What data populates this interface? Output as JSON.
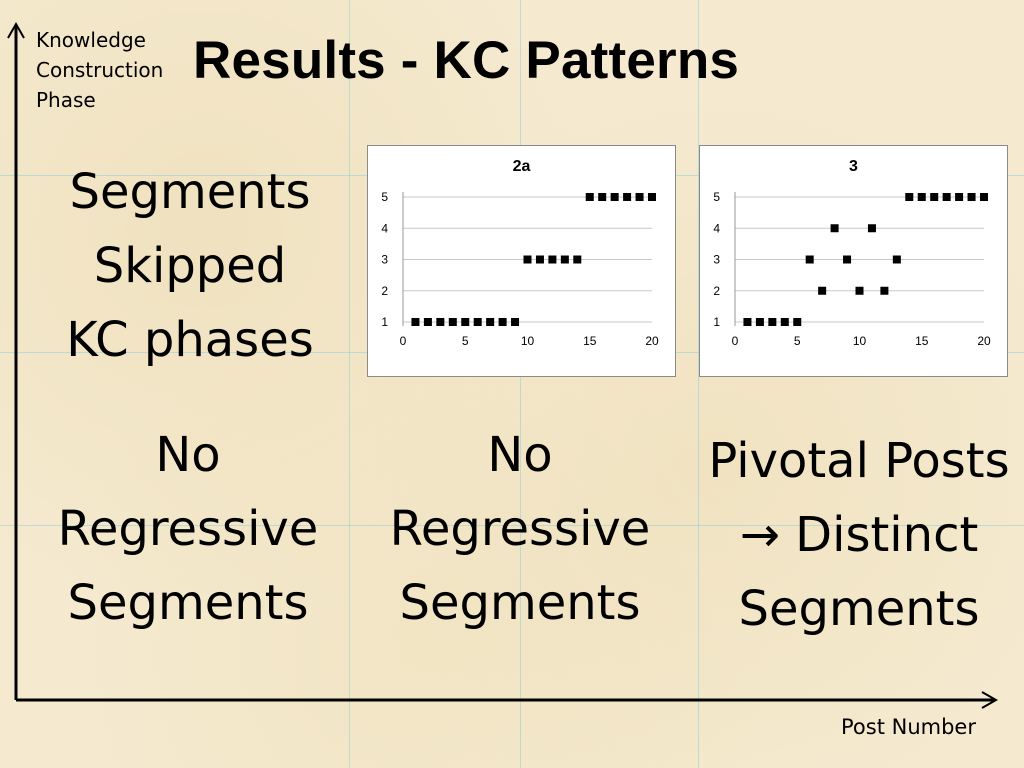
{
  "slide_title": "Results - KC Patterns",
  "y_axis_label": [
    "Knowledge",
    "Construction",
    "Phase"
  ],
  "x_axis_label": "Post Number",
  "row1_label": [
    "Segments",
    "Skipped",
    "KC phases"
  ],
  "row2": {
    "col1": [
      "No",
      "Regressive",
      "Segments"
    ],
    "col2": [
      "No",
      "Regressive",
      "Segments"
    ],
    "col3": [
      "Pivotal Posts",
      "→ Distinct",
      "Segments"
    ]
  },
  "colors": {
    "marker": "#000000",
    "grid": "#c8c8c8",
    "background": "#f5ead0"
  },
  "chart_data": [
    {
      "type": "scatter",
      "title": "2a",
      "xlim": [
        0,
        20
      ],
      "ylim": [
        1,
        5
      ],
      "xticks": [
        0,
        5,
        10,
        15,
        20
      ],
      "yticks": [
        1,
        2,
        3,
        4,
        5
      ],
      "grid": true,
      "points": [
        [
          1,
          1
        ],
        [
          2,
          1
        ],
        [
          3,
          1
        ],
        [
          4,
          1
        ],
        [
          5,
          1
        ],
        [
          6,
          1
        ],
        [
          7,
          1
        ],
        [
          8,
          1
        ],
        [
          9,
          1
        ],
        [
          10,
          3
        ],
        [
          11,
          3
        ],
        [
          12,
          3
        ],
        [
          13,
          3
        ],
        [
          14,
          3
        ],
        [
          15,
          5
        ],
        [
          16,
          5
        ],
        [
          17,
          5
        ],
        [
          18,
          5
        ],
        [
          19,
          5
        ],
        [
          20,
          5
        ]
      ]
    },
    {
      "type": "scatter",
      "title": "3",
      "xlim": [
        0,
        20
      ],
      "ylim": [
        1,
        5
      ],
      "xticks": [
        0,
        5,
        10,
        15,
        20
      ],
      "yticks": [
        1,
        2,
        3,
        4,
        5
      ],
      "grid": true,
      "points": [
        [
          1,
          1
        ],
        [
          2,
          1
        ],
        [
          3,
          1
        ],
        [
          4,
          1
        ],
        [
          5,
          1
        ],
        [
          6,
          3
        ],
        [
          7,
          2
        ],
        [
          8,
          4
        ],
        [
          9,
          3
        ],
        [
          10,
          2
        ],
        [
          11,
          4
        ],
        [
          12,
          2
        ],
        [
          13,
          3
        ],
        [
          14,
          5
        ],
        [
          15,
          5
        ],
        [
          16,
          5
        ],
        [
          17,
          5
        ],
        [
          18,
          5
        ],
        [
          19,
          5
        ],
        [
          20,
          5
        ]
      ]
    }
  ]
}
